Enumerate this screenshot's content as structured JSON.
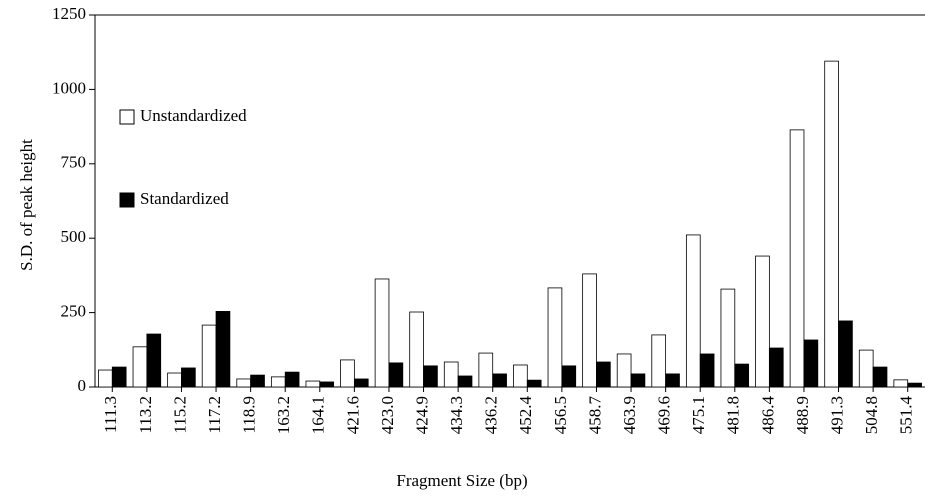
{
  "chart_data": {
    "type": "bar",
    "xlabel": "Fragment Size (bp)",
    "ylabel": "S.D. of peak height",
    "categories": [
      "111.3",
      "113.2",
      "115.2",
      "117.2",
      "118.9",
      "163.2",
      "164.1",
      "421.6",
      "423.0",
      "424.9",
      "434.3",
      "436.2",
      "452.4",
      "456.5",
      "458.7",
      "463.9",
      "469.6",
      "475.1",
      "481.8",
      "486.4",
      "488.9",
      "491.3",
      "504.8",
      "551.4"
    ],
    "series": [
      {
        "name": "Unstandardized",
        "color": "#ffffff",
        "values": [
          57,
          135,
          47,
          208,
          27,
          34,
          20,
          91,
          363,
          252,
          84,
          114,
          74,
          333,
          380,
          111,
          175,
          511,
          329,
          440,
          864,
          1095,
          124,
          24
        ]
      },
      {
        "name": "Standardized",
        "color": "#000000",
        "values": [
          67,
          178,
          64,
          254,
          40,
          50,
          17,
          27,
          81,
          71,
          37,
          44,
          23,
          71,
          84,
          44,
          44,
          111,
          77,
          131,
          158,
          222,
          67,
          13
        ]
      }
    ],
    "ylim": [
      0,
      1250
    ],
    "yticks": [
      0,
      250,
      500,
      750,
      1000,
      1250
    ]
  }
}
